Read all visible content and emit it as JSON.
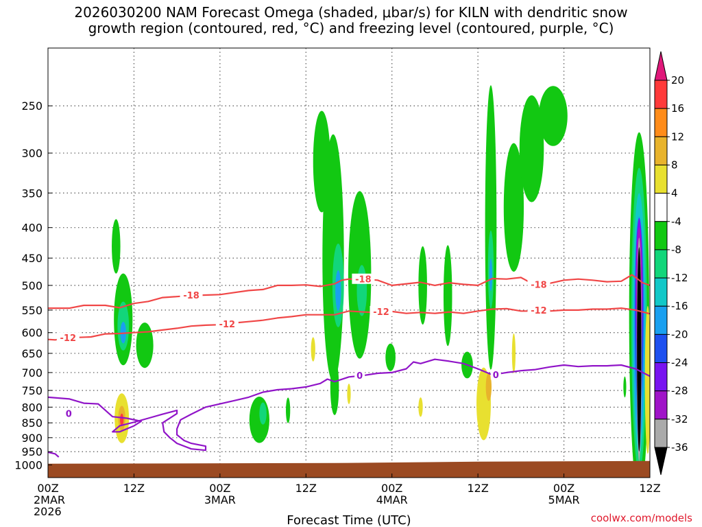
{
  "header": {
    "title_line1": "2026030200 NAM Forecast Omega (shaded, μbar/s) for KILN with dendritic snow",
    "title_line2": "growth region (contoured, red, °C) and freezing level (contoured, purple, °C)"
  },
  "footer": {
    "credit": "coolwx.com/models"
  },
  "chart_data": {
    "type": "contour",
    "xlabel": "Forecast Time (UTC)",
    "ylabel": "",
    "xlim_hours": [
      0,
      84
    ],
    "ylim_pressure_hpa": [
      1050,
      200
    ],
    "y_ticks": [
      250,
      300,
      350,
      400,
      450,
      500,
      550,
      600,
      650,
      700,
      750,
      800,
      850,
      900,
      950,
      1000
    ],
    "x_ticks": [
      {
        "hour": 0,
        "line1": "00Z",
        "line2": "2MAR",
        "line3": "2026"
      },
      {
        "hour": 12,
        "line1": "12Z",
        "line2": "",
        "line3": ""
      },
      {
        "hour": 24,
        "line1": "00Z",
        "line2": "3MAR",
        "line3": ""
      },
      {
        "hour": 36,
        "line1": "12Z",
        "line2": "",
        "line3": ""
      },
      {
        "hour": 48,
        "line1": "00Z",
        "line2": "4MAR",
        "line3": ""
      },
      {
        "hour": 60,
        "line1": "12Z",
        "line2": "",
        "line3": ""
      },
      {
        "hour": 72,
        "line1": "00Z",
        "line2": "5MAR",
        "line3": ""
      },
      {
        "hour": 84,
        "line1": "12Z",
        "line2": "",
        "line3": ""
      }
    ],
    "colorbar": {
      "label_unit": "μbar/s",
      "levels": [
        20,
        16,
        12,
        8,
        4,
        -4,
        -8,
        -12,
        -16,
        -20,
        -24,
        -28,
        -32,
        -36
      ],
      "bands": [
        {
          "min": 16,
          "max": 20,
          "color": "#ff3a3a"
        },
        {
          "min": 12,
          "max": 16,
          "color": "#ff8c1a"
        },
        {
          "min": 8,
          "max": 12,
          "color": "#e8b32c"
        },
        {
          "min": 4,
          "max": 8,
          "color": "#e8e030"
        },
        {
          "min": -4,
          "max": 4,
          "color": "#ffffff"
        },
        {
          "min": -8,
          "max": -4,
          "color": "#12c812"
        },
        {
          "min": -12,
          "max": -8,
          "color": "#12d67a"
        },
        {
          "min": -16,
          "max": -12,
          "color": "#12c8c8"
        },
        {
          "min": -20,
          "max": -16,
          "color": "#1aa0f0"
        },
        {
          "min": -24,
          "max": -20,
          "color": "#1e50f0"
        },
        {
          "min": -28,
          "max": -24,
          "color": "#7814f0"
        },
        {
          "min": -32,
          "max": -28,
          "color": "#a014c8"
        },
        {
          "min": -36,
          "max": -32,
          "color": "#aaaaaa"
        }
      ],
      "top_arrow_color": "#e0187a",
      "bottom_arrow_color": "#000000"
    },
    "contours": [
      {
        "name": "dgz-upper",
        "value_label": "-18",
        "color": "#f04646",
        "points": [
          [
            0,
            546
          ],
          [
            3,
            546
          ],
          [
            5,
            540
          ],
          [
            8,
            540
          ],
          [
            10,
            545
          ],
          [
            12,
            536
          ],
          [
            14,
            532
          ],
          [
            16,
            524
          ],
          [
            18,
            522
          ],
          [
            20,
            520
          ],
          [
            22,
            519
          ],
          [
            24,
            518
          ],
          [
            26,
            514
          ],
          [
            28,
            510
          ],
          [
            30,
            508
          ],
          [
            32,
            500
          ],
          [
            34,
            500
          ],
          [
            36,
            499
          ],
          [
            38,
            502
          ],
          [
            40,
            497
          ],
          [
            41,
            490
          ],
          [
            42,
            488
          ],
          [
            44,
            488
          ],
          [
            46,
            490
          ],
          [
            48,
            500
          ],
          [
            50,
            497
          ],
          [
            52,
            494
          ],
          [
            54,
            500
          ],
          [
            56,
            495
          ],
          [
            58,
            498
          ],
          [
            60,
            500
          ],
          [
            62,
            487
          ],
          [
            64,
            488
          ],
          [
            66,
            485
          ],
          [
            68,
            500
          ],
          [
            70,
            496
          ],
          [
            72,
            490
          ],
          [
            74,
            488
          ],
          [
            76,
            490
          ],
          [
            78,
            493
          ],
          [
            80,
            492
          ],
          [
            81.5,
            480
          ],
          [
            83,
            495
          ],
          [
            84,
            500
          ]
        ],
        "labels": [
          {
            "hour": 20,
            "pressure": 519
          },
          {
            "hour": 44,
            "pressure": 488
          },
          {
            "hour": 68.5,
            "pressure": 498
          }
        ]
      },
      {
        "name": "dgz-lower",
        "value_label": "-12",
        "color": "#f04646",
        "points": [
          [
            0,
            616
          ],
          [
            1,
            617
          ],
          [
            3,
            612
          ],
          [
            6,
            610
          ],
          [
            8,
            603
          ],
          [
            10,
            602
          ],
          [
            12,
            600
          ],
          [
            14,
            598
          ],
          [
            16,
            594
          ],
          [
            18,
            590
          ],
          [
            20,
            585
          ],
          [
            22,
            583
          ],
          [
            24,
            582
          ],
          [
            26,
            578
          ],
          [
            28,
            575
          ],
          [
            30,
            572
          ],
          [
            32,
            567
          ],
          [
            34,
            564
          ],
          [
            36,
            560
          ],
          [
            38,
            560
          ],
          [
            40,
            560
          ],
          [
            42,
            552
          ],
          [
            44,
            554
          ],
          [
            46,
            555
          ],
          [
            48,
            553
          ],
          [
            50,
            557
          ],
          [
            52,
            555
          ],
          [
            54,
            557
          ],
          [
            56,
            554
          ],
          [
            58,
            557
          ],
          [
            60,
            552
          ],
          [
            62,
            548
          ],
          [
            64,
            547
          ],
          [
            66,
            552
          ],
          [
            68,
            552
          ],
          [
            70,
            552
          ],
          [
            72,
            550
          ],
          [
            74,
            550
          ],
          [
            76,
            548
          ],
          [
            78,
            548
          ],
          [
            80,
            546
          ],
          [
            82,
            550
          ],
          [
            84,
            558
          ]
        ],
        "labels": [
          {
            "hour": 2.8,
            "pressure": 612
          },
          {
            "hour": 25,
            "pressure": 580
          },
          {
            "hour": 46.5,
            "pressure": 553
          },
          {
            "hour": 68.5,
            "pressure": 550
          }
        ]
      },
      {
        "name": "freezing-level",
        "value_label": "0",
        "color": "#9014c8",
        "points": [
          [
            0,
            770
          ],
          [
            3,
            775
          ],
          [
            5,
            788
          ],
          [
            7,
            790
          ],
          [
            9,
            830
          ],
          [
            11,
            835
          ],
          [
            13,
            845
          ],
          [
            12,
            860
          ],
          [
            10,
            880
          ],
          [
            9,
            880
          ],
          [
            10,
            860
          ],
          [
            12,
            848
          ],
          [
            14,
            835
          ],
          [
            16,
            822
          ],
          [
            18,
            810
          ],
          [
            18,
            820
          ],
          [
            16,
            850
          ],
          [
            16.2,
            880
          ],
          [
            17,
            900
          ],
          [
            18,
            920
          ],
          [
            20,
            940
          ],
          [
            22,
            945
          ],
          [
            22,
            930
          ],
          [
            20,
            920
          ],
          [
            19,
            910
          ],
          [
            18,
            890
          ],
          [
            18,
            870
          ],
          [
            18.5,
            840
          ],
          [
            20,
            822
          ],
          [
            22,
            800
          ],
          [
            24,
            790
          ],
          [
            26,
            780
          ],
          [
            28,
            770
          ],
          [
            30,
            755
          ],
          [
            32,
            748
          ],
          [
            34,
            745
          ],
          [
            36,
            740
          ],
          [
            38,
            730
          ],
          [
            39,
            718
          ],
          [
            40,
            725
          ],
          [
            42,
            712
          ],
          [
            44,
            708
          ],
          [
            46,
            702
          ],
          [
            48,
            700
          ],
          [
            50,
            690
          ],
          [
            51,
            672
          ],
          [
            52,
            676
          ],
          [
            54,
            665
          ],
          [
            56,
            670
          ],
          [
            58,
            676
          ],
          [
            60,
            690
          ],
          [
            62,
            706
          ],
          [
            64,
            700
          ],
          [
            66,
            695
          ],
          [
            68,
            692
          ],
          [
            70,
            685
          ],
          [
            72,
            680
          ],
          [
            74,
            684
          ],
          [
            76,
            682
          ],
          [
            78,
            682
          ],
          [
            80,
            680
          ],
          [
            82,
            690
          ],
          [
            84,
            710
          ]
        ],
        "labels": [
          {
            "hour": 2.9,
            "pressure": 820
          },
          {
            "hour": 43.5,
            "pressure": 708
          },
          {
            "hour": 62.5,
            "pressure": 706
          }
        ]
      },
      {
        "name": "freezing-level-fragment",
        "value_label": "",
        "color": "#9014c8",
        "points": [
          [
            0,
            952
          ],
          [
            1,
            958
          ],
          [
            1.5,
            970
          ]
        ],
        "labels": []
      }
    ],
    "omega_regions": [
      {
        "hour": 9.5,
        "pressure": 430,
        "dh": 0.6,
        "dp": 45,
        "value": -6
      },
      {
        "hour": 10.5,
        "pressure": 570,
        "dh": 1.3,
        "dp": 100,
        "value": -6
      },
      {
        "hour": 10.5,
        "pressure": 585,
        "dh": 0.8,
        "dp": 55,
        "value": -12
      },
      {
        "hour": 10.5,
        "pressure": 600,
        "dh": 0.4,
        "dp": 25,
        "value": -18
      },
      {
        "hour": 13.5,
        "pressure": 630,
        "dh": 1.2,
        "dp": 55,
        "value": -6
      },
      {
        "hour": 10.3,
        "pressure": 835,
        "dh": 1.0,
        "dp": 80,
        "value": 6
      },
      {
        "hour": 10.3,
        "pressure": 835,
        "dh": 0.5,
        "dp": 40,
        "value": 10
      },
      {
        "hour": 10.3,
        "pressure": 840,
        "dh": 0.25,
        "dp": 20,
        "value": 18
      },
      {
        "hour": 29.5,
        "pressure": 840,
        "dh": 1.4,
        "dp": 75,
        "value": -6
      },
      {
        "hour": 30.0,
        "pressure": 820,
        "dh": 0.5,
        "dp": 35,
        "value": -12
      },
      {
        "hour": 33.5,
        "pressure": 810,
        "dh": 0.3,
        "dp": 40,
        "value": -6
      },
      {
        "hour": 37.0,
        "pressure": 640,
        "dh": 0.3,
        "dp": 30,
        "value": 6
      },
      {
        "hour": 38.2,
        "pressure": 310,
        "dh": 1.2,
        "dp": 60,
        "value": -6
      },
      {
        "hour": 39.8,
        "pressure": 450,
        "dh": 1.5,
        "dp": 200,
        "value": -6
      },
      {
        "hour": 40.5,
        "pressure": 500,
        "dh": 0.8,
        "dp": 80,
        "value": -12
      },
      {
        "hour": 40.5,
        "pressure": 510,
        "dh": 0.4,
        "dp": 40,
        "value": -18
      },
      {
        "hour": 40.0,
        "pressure": 740,
        "dh": 0.6,
        "dp": 80,
        "value": -6
      },
      {
        "hour": 42.0,
        "pressure": 760,
        "dh": 0.25,
        "dp": 30,
        "value": 6
      },
      {
        "hour": 43.5,
        "pressure": 480,
        "dh": 1.6,
        "dp": 150,
        "value": -6
      },
      {
        "hour": 43.8,
        "pressure": 510,
        "dh": 0.7,
        "dp": 50,
        "value": -12
      },
      {
        "hour": 47.8,
        "pressure": 660,
        "dh": 0.7,
        "dp": 35,
        "value": -6
      },
      {
        "hour": 52.3,
        "pressure": 500,
        "dh": 0.6,
        "dp": 75,
        "value": -6
      },
      {
        "hour": 55.8,
        "pressure": 520,
        "dh": 0.6,
        "dp": 100,
        "value": -6
      },
      {
        "hour": 52.0,
        "pressure": 800,
        "dh": 0.3,
        "dp": 30,
        "value": 6
      },
      {
        "hour": 58.5,
        "pressure": 680,
        "dh": 0.8,
        "dp": 35,
        "value": -6
      },
      {
        "hour": 60.8,
        "pressure": 790,
        "dh": 1.0,
        "dp": 110,
        "value": 6
      },
      {
        "hour": 61.5,
        "pressure": 740,
        "dh": 0.4,
        "dp": 40,
        "value": 10
      },
      {
        "hour": 61.8,
        "pressure": 400,
        "dh": 0.8,
        "dp": 200,
        "value": -6
      },
      {
        "hour": 61.8,
        "pressure": 470,
        "dh": 0.4,
        "dp": 70,
        "value": -12
      },
      {
        "hour": 61.8,
        "pressure": 480,
        "dh": 0.2,
        "dp": 30,
        "value": -18
      },
      {
        "hour": 65.0,
        "pressure": 370,
        "dh": 1.4,
        "dp": 90,
        "value": -6
      },
      {
        "hour": 67.5,
        "pressure": 295,
        "dh": 1.7,
        "dp": 60,
        "value": -6
      },
      {
        "hour": 70.5,
        "pressure": 260,
        "dh": 2.0,
        "dp": 30,
        "value": -6
      },
      {
        "hour": 65.0,
        "pressure": 650,
        "dh": 0.25,
        "dp": 50,
        "value": 6
      },
      {
        "hour": 80.5,
        "pressure": 740,
        "dh": 0.2,
        "dp": 30,
        "value": -6
      },
      {
        "hour": 82.5,
        "pressure": 560,
        "dh": 1.4,
        "dp": 340,
        "value": -6
      },
      {
        "hour": 82.5,
        "pressure": 570,
        "dh": 1.1,
        "dp": 300,
        "value": -10
      },
      {
        "hour": 82.5,
        "pressure": 580,
        "dh": 0.9,
        "dp": 270,
        "value": -14
      },
      {
        "hour": 82.5,
        "pressure": 590,
        "dh": 0.75,
        "dp": 240,
        "value": -18
      },
      {
        "hour": 82.5,
        "pressure": 560,
        "dh": 0.6,
        "dp": 200,
        "value": -22
      },
      {
        "hour": 82.5,
        "pressure": 520,
        "dh": 0.5,
        "dp": 150,
        "value": -26
      },
      {
        "hour": 82.5,
        "pressure": 500,
        "dh": 0.45,
        "dp": 110,
        "value": -30
      },
      {
        "hour": 82.5,
        "pressure": 640,
        "dh": 0.35,
        "dp": 260,
        "value": -34
      },
      {
        "hour": 82.5,
        "pressure": 640,
        "dh": 0.3,
        "dp": 240,
        "value": -40
      },
      {
        "hour": 83.7,
        "pressure": 720,
        "dh": 0.4,
        "dp": 200,
        "value": 6
      }
    ],
    "terrain": {
      "color": "#9b4a22",
      "surface_pressure_hpa": 990
    }
  }
}
